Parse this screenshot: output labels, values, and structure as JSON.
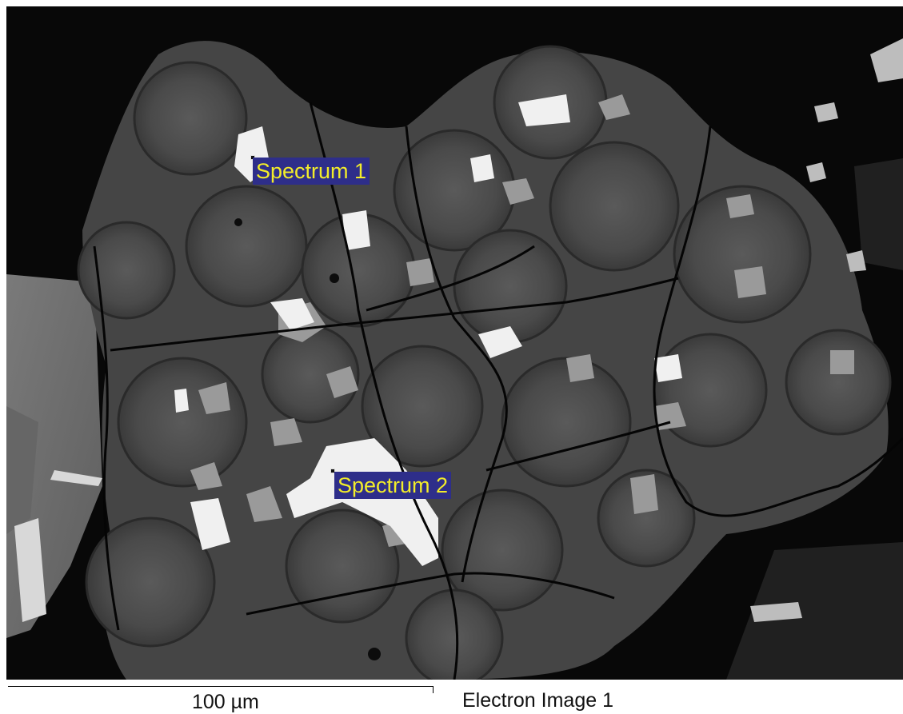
{
  "image": {
    "description_icon": "micrograph-icon",
    "spectra": [
      {
        "label": "Spectrum 1"
      },
      {
        "label": "Spectrum 2"
      }
    ]
  },
  "footer": {
    "scale_text": "100 µm",
    "image_title": "Electron Image 1"
  },
  "colors": {
    "label_bg": "#2e2e8a",
    "label_text": "#f2ec2a"
  }
}
